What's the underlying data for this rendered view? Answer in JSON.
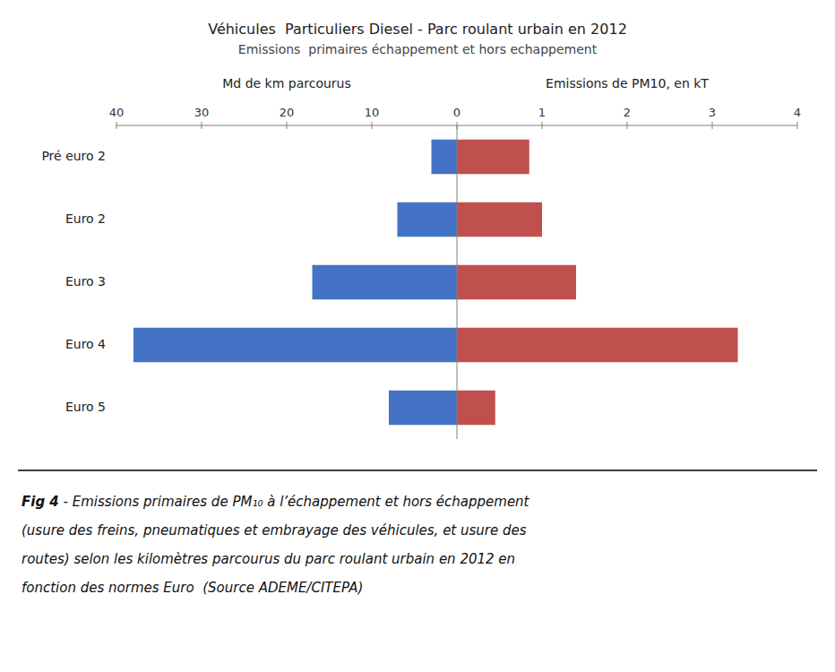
{
  "chart_data": {
    "type": "bar",
    "orientation": "horizontal",
    "title": "Véhicules  Particuliers Diesel - Parc roulant urbain en 2012",
    "subtitle": "Emissions  primaires échappement et hors echappement",
    "y_label": "Md de km parcourus",
    "y2_label": "Emissions de PM10, en kT",
    "categories": [
      "Pré euro 2",
      "Euro 2",
      "Euro 3",
      "Euro 4",
      "Euro 5"
    ],
    "series": [
      {
        "color": "#4472C4",
        "values": [
          3.0,
          7.0,
          17.0,
          38.0,
          8.0
        ]
      },
      {
        "color": "#C0504D",
        "axis": "y2",
        "values": [
          0.85,
          1.0,
          1.4,
          3.3,
          0.45
        ]
      }
    ],
    "ylim": [
      0,
      40
    ],
    "yticks": [
      0,
      10,
      20,
      30,
      40
    ],
    "y2lim": [
      0,
      4
    ],
    "y2ticks": [
      1,
      2,
      3,
      4
    ],
    "grid": false,
    "caption": [
      "Fig 4",
      " - Emissions primaires de PM₁₀ à l’échappement et hors échappement",
      "(usure des freins, pneumatiques et embrayage des véhicules, et usure des",
      "routes) selon les kilomètres parcourus du parc roulant urbain en 2012 en",
      "fonction des normes Euro  (Source ADEME/CITEPA)"
    ]
  }
}
